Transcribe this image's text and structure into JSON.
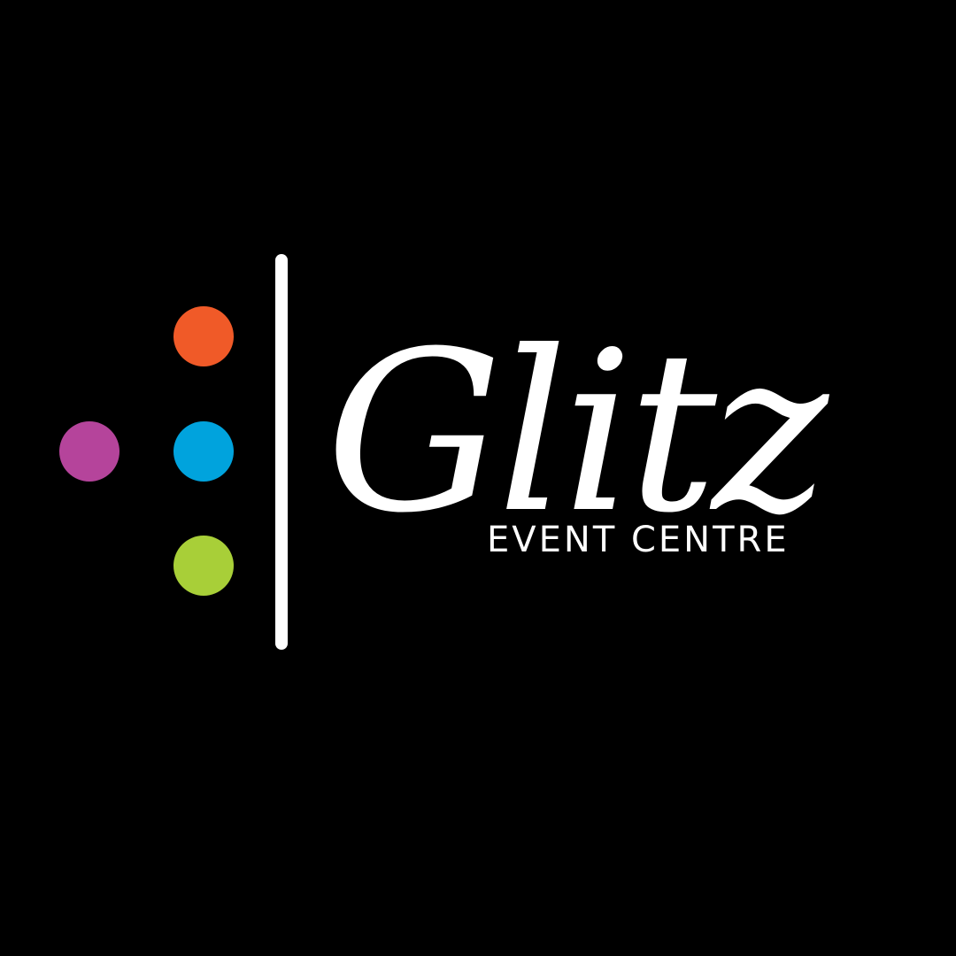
{
  "logo": {
    "name": "Glitz",
    "tagline": "EVENT CENTRE"
  },
  "colors": {
    "background": "#000000",
    "foreground": "#ffffff",
    "dot_orange": "#f05a28",
    "dot_magenta": "#b5449b",
    "dot_blue": "#00a3dd",
    "dot_green": "#a8cf38"
  }
}
